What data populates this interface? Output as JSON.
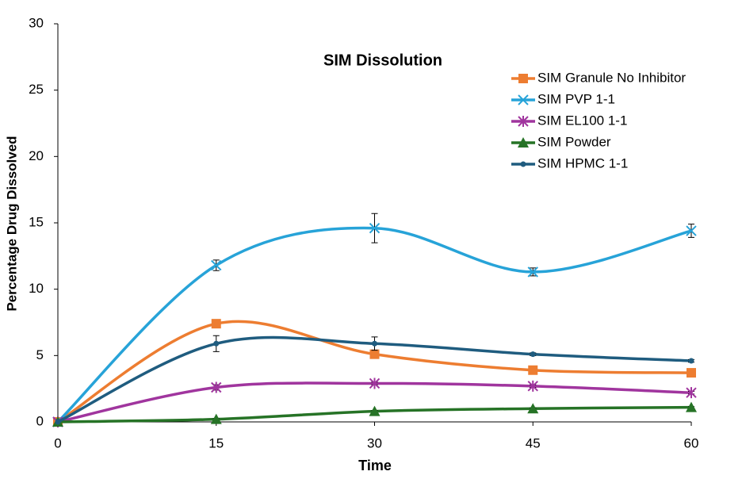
{
  "chart_data": {
    "type": "line",
    "title": "SIM Dissolution",
    "x_label": "Time",
    "y_label": "Percentage Drug Dissolved",
    "x": [
      0,
      15,
      30,
      45,
      60
    ],
    "xlim": [
      0,
      60
    ],
    "xticks": [
      0,
      15,
      30,
      45,
      60
    ],
    "ylim": [
      0,
      30
    ],
    "yticks": [
      0,
      5,
      10,
      15,
      20,
      25,
      30
    ],
    "grid": false,
    "smooth": true,
    "legend": "upper right",
    "series": [
      {
        "name": "SIM Granule No Inhibitor",
        "color": "#ed7d31",
        "marker": "square",
        "values": [
          0,
          7.4,
          5.1,
          3.9,
          3.7
        ],
        "errors": [
          0,
          0.1,
          0.2,
          0.1,
          0.1
        ]
      },
      {
        "name": "SIM PVP 1-1",
        "color": "#27a3d8",
        "marker": "x",
        "values": [
          0,
          11.8,
          14.6,
          11.3,
          14.4
        ],
        "errors": [
          0,
          0.4,
          1.1,
          0.3,
          0.5
        ]
      },
      {
        "name": "SIM EL100 1-1",
        "color": "#a0359e",
        "marker": "star",
        "values": [
          0,
          2.6,
          2.9,
          2.7,
          2.2
        ],
        "errors": [
          0,
          0.2,
          0.1,
          0.1,
          0.1
        ]
      },
      {
        "name": "SIM Powder",
        "color": "#267326",
        "marker": "triangle",
        "values": [
          0,
          0.2,
          0.8,
          1.0,
          1.1
        ],
        "errors": [
          0,
          0.05,
          0.05,
          0.05,
          0.05
        ]
      },
      {
        "name": "SIM HPMC 1-1",
        "color": "#1f5c7f",
        "marker": "circle",
        "values": [
          0,
          5.9,
          5.9,
          5.1,
          4.6
        ],
        "errors": [
          0,
          0.6,
          0.5,
          0.1,
          0.1
        ]
      }
    ]
  }
}
